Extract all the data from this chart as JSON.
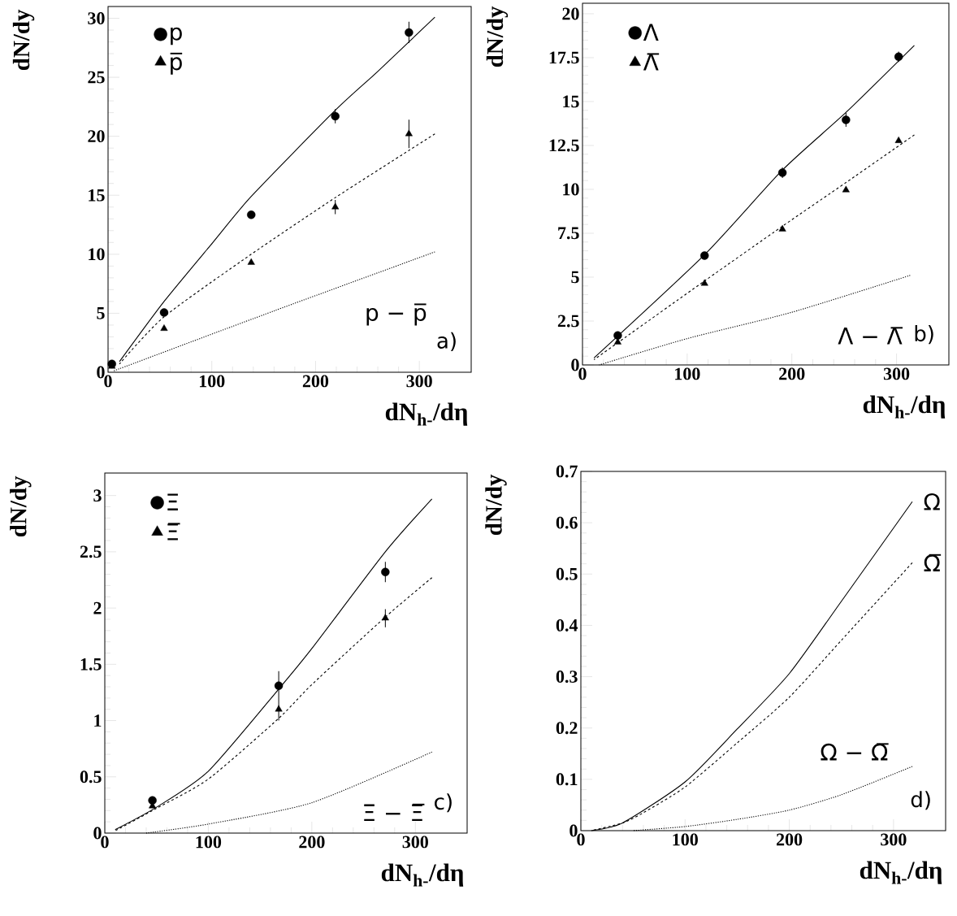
{
  "chart_data": [
    {
      "type": "scatter",
      "xlabel": "dN$_{h-}$/dη",
      "ylabel": "dN/dy",
      "xlim": [
        0,
        350
      ],
      "ylim": [
        0,
        31
      ],
      "xticks": [
        0,
        100,
        200,
        300
      ],
      "yticks": [
        0,
        5,
        10,
        15,
        20,
        25,
        30
      ],
      "legend": "top left",
      "annotations": [
        "a)"
      ],
      "x": [
        3.7,
        54,
        138,
        219,
        290
      ],
      "series": [
        {
          "name": "p",
          "marker": "circle",
          "color": "#000000",
          "values": [
            0.7,
            5.06,
            13.35,
            21.7,
            28.8
          ],
          "errors": [
            null,
            null,
            null,
            0.6,
            0.9
          ]
        },
        {
          "name": "p̅",
          "marker": "triangle",
          "color": "#000000",
          "values": [
            0.5,
            3.7,
            9.3,
            14.0,
            20.2
          ],
          "errors": [
            null,
            null,
            null,
            0.6,
            1.2
          ]
        },
        {
          "type": "line",
          "line_style": "solid",
          "color": "#000000",
          "x": [
            11,
            54,
            101,
            138,
            219,
            260,
            315
          ],
          "values": [
            0.9,
            6.0,
            11.0,
            14.9,
            22.2,
            25.5,
            30.1
          ]
        },
        {
          "type": "line",
          "line_style": "dashed",
          "color": "#000000",
          "x": [
            11,
            54,
            138,
            219,
            290,
            315
          ],
          "values": [
            0.7,
            4.7,
            10.0,
            14.8,
            18.8,
            20.2
          ]
        },
        {
          "name": "p − p̅",
          "type": "line",
          "line_style": "dotted",
          "color": "#000000",
          "x": [
            5,
            160,
            315
          ],
          "values": [
            0.1,
            5.2,
            10.2
          ]
        }
      ]
    },
    {
      "type": "scatter",
      "xlabel": "dN$_{h-}$/dη",
      "ylabel": "dN/dy",
      "xlim": [
        0,
        350
      ],
      "ylim": [
        0,
        20.6
      ],
      "xticks": [
        0,
        100,
        200,
        300
      ],
      "yticks": [
        0,
        2.5,
        5,
        7.5,
        10,
        12.5,
        15,
        17.5,
        20
      ],
      "legend": "top left",
      "annotations": [
        "b)"
      ],
      "x": [
        33.7,
        116.6,
        191,
        251.7,
        302
      ],
      "series": [
        {
          "name": "Λ",
          "marker": "circle",
          "color": "#000000",
          "values": [
            1.68,
            6.23,
            10.95,
            13.96,
            17.55
          ],
          "errors": [
            null,
            null,
            0.3,
            0.4,
            0.3
          ]
        },
        {
          "name": "Λ̅",
          "marker": "triangle",
          "color": "#000000",
          "values": [
            1.29,
            4.64,
            7.73,
            9.96,
            12.77
          ],
          "errors": [
            null,
            null,
            null,
            null,
            null
          ]
        },
        {
          "type": "line",
          "line_style": "solid",
          "color": "#000000",
          "x": [
            11,
            117,
            191,
            252,
            317
          ],
          "values": [
            0.4,
            6.3,
            11.1,
            14.4,
            18.2
          ]
        },
        {
          "type": "line",
          "line_style": "dashed",
          "color": "#000000",
          "x": [
            11,
            117,
            191,
            252,
            317
          ],
          "values": [
            0.3,
            4.8,
            7.9,
            10.4,
            13.1
          ]
        },
        {
          "name": "Λ − Λ̅",
          "type": "line",
          "line_style": "dotted",
          "color": "#000000",
          "x": [
            16,
            100,
            200,
            313
          ],
          "values": [
            0.0,
            1.5,
            3.0,
            5.1
          ]
        }
      ]
    },
    {
      "type": "scatter",
      "xlabel": "dN$_{h-}$/dη",
      "ylabel": "dN/dy",
      "xlim": [
        0,
        350
      ],
      "ylim": [
        0,
        3.2
      ],
      "xticks": [
        0,
        100,
        200,
        300
      ],
      "yticks": [
        0,
        0.5,
        1,
        1.5,
        2,
        2.5,
        3
      ],
      "legend": "top left",
      "annotations": [
        "c)"
      ],
      "x": [
        46,
        168,
        271
      ],
      "series": [
        {
          "name": "Ξ",
          "marker": "circle",
          "color": "#000000",
          "values": [
            0.29,
            1.31,
            2.32
          ],
          "errors": [
            null,
            [
              1.0,
              1.44
            ],
            0.09
          ]
        },
        {
          "name": "Ξ̅",
          "marker": "triangle",
          "color": "#000000",
          "values": [
            0.24,
            1.1,
            1.91
          ],
          "errors": [
            null,
            null,
            0.08
          ]
        },
        {
          "type": "line",
          "line_style": "solid",
          "color": "#000000",
          "x": [
            10,
            50,
            100,
            168,
            200,
            271,
            316
          ],
          "values": [
            0.03,
            0.23,
            0.55,
            1.28,
            1.64,
            2.5,
            2.97
          ]
        },
        {
          "type": "line",
          "line_style": "dashed",
          "color": "#000000",
          "x": [
            10,
            50,
            100,
            168,
            200,
            271,
            316
          ],
          "values": [
            0.02,
            0.22,
            0.48,
            1.02,
            1.32,
            1.92,
            2.27
          ]
        },
        {
          "name": "Ξ − Ξ̅",
          "type": "line",
          "line_style": "dotted",
          "color": "#000000",
          "x": [
            40,
            100,
            200,
            316
          ],
          "values": [
            0.0,
            0.08,
            0.27,
            0.72
          ]
        }
      ]
    },
    {
      "type": "line",
      "xlabel": "dN$_{h-}$/dη",
      "ylabel": "dN/dy",
      "xlim": [
        0,
        350
      ],
      "ylim": [
        0,
        0.7
      ],
      "xticks": [
        0,
        100,
        200,
        300
      ],
      "yticks": [
        0,
        0.1,
        0.2,
        0.3,
        0.4,
        0.5,
        0.6,
        0.7
      ],
      "annotations": [
        "d)"
      ],
      "series": [
        {
          "name": "Ω",
          "line_style": "solid",
          "color": "#000000",
          "x": [
            10,
            40,
            100,
            150,
            200,
            250,
            318
          ],
          "values": [
            0.0,
            0.015,
            0.095,
            0.198,
            0.306,
            0.447,
            0.641
          ]
        },
        {
          "name": "Ω̅",
          "line_style": "dashed",
          "color": "#000000",
          "x": [
            10,
            40,
            60,
            100,
            150,
            200,
            250,
            318
          ],
          "values": [
            0.0,
            0.015,
            0.035,
            0.085,
            0.171,
            0.26,
            0.371,
            0.522
          ]
        },
        {
          "name": "Ω − Ω̅",
          "line_style": "dotted",
          "color": "#000000",
          "x": [
            50,
            100,
            150,
            200,
            250,
            318
          ],
          "values": [
            0.0,
            0.008,
            0.022,
            0.04,
            0.07,
            0.125
          ]
        }
      ]
    }
  ]
}
